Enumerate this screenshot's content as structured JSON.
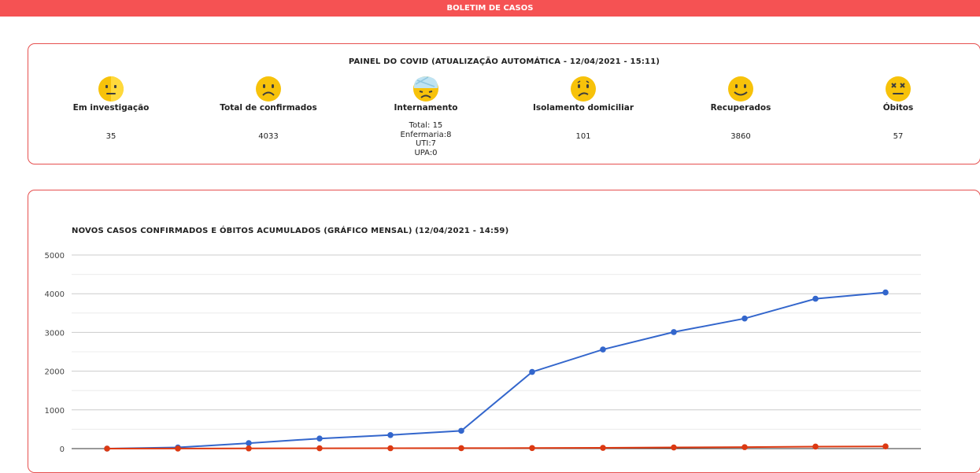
{
  "header": {
    "title": "BOLETIM DE CASOS"
  },
  "panel": {
    "title": "PAINEL DO COVID (ATUALIZAÇÃO AUTOMÁTICA - 12/04/2021 - 15:11)",
    "stats": [
      {
        "label": "Em investigação",
        "value": "35",
        "icon": "neutral-face-icon"
      },
      {
        "label": "Total de confirmados",
        "value": "4033",
        "icon": "frowning-face-icon"
      },
      {
        "label": "Internamento",
        "icon": "bandaged-face-icon",
        "total": "Total: 15",
        "enfermaria": "Enfermaria:8",
        "uti": "UTI:7",
        "upa": "UPA:0"
      },
      {
        "label": "Isolamento domiciliar",
        "value": "101",
        "icon": "confused-face-icon"
      },
      {
        "label": "Recuperados",
        "value": "3860",
        "icon": "smiling-face-icon"
      },
      {
        "label": "Óbitos",
        "value": "57",
        "icon": "dizzy-face-icon"
      }
    ]
  },
  "colors": {
    "accent": "#f55253",
    "confirmed": "#3366cc",
    "deaths": "#dc3912",
    "emoji": "#f7c20a"
  },
  "chart": {
    "title": "NOVOS CASOS CONFIRMADOS E ÓBITOS ACUMULADOS (GRÁFICO MENSAL) (12/04/2021 - 14:59)"
  },
  "chart_data": {
    "type": "line",
    "x": [
      1,
      2,
      3,
      4,
      5,
      6,
      7,
      8,
      9,
      10,
      11,
      12
    ],
    "ylim": [
      0,
      5000
    ],
    "yticks": [
      "0",
      "1000",
      "2000",
      "3000",
      "4000",
      "5000"
    ],
    "grid": true,
    "series": [
      {
        "color": "#3366cc",
        "values": [
          0,
          30,
          140,
          260,
          350,
          460,
          1980,
          2560,
          3010,
          3360,
          3870,
          4033
        ]
      },
      {
        "color": "#dc3912",
        "values": [
          0,
          2,
          5,
          8,
          10,
          12,
          14,
          20,
          30,
          38,
          52,
          57
        ]
      }
    ]
  }
}
